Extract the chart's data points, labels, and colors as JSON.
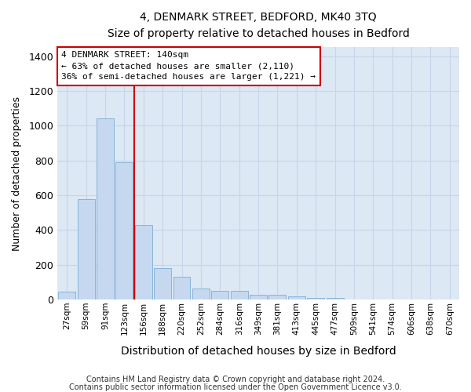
{
  "title": "4, DENMARK STREET, BEDFORD, MK40 3TQ",
  "subtitle": "Size of property relative to detached houses in Bedford",
  "xlabel": "Distribution of detached houses by size in Bedford",
  "ylabel": "Number of detached properties",
  "categories": [
    "27sqm",
    "59sqm",
    "91sqm",
    "123sqm",
    "156sqm",
    "188sqm",
    "220sqm",
    "252sqm",
    "284sqm",
    "316sqm",
    "349sqm",
    "381sqm",
    "413sqm",
    "445sqm",
    "477sqm",
    "509sqm",
    "541sqm",
    "574sqm",
    "606sqm",
    "638sqm",
    "670sqm"
  ],
  "values": [
    45,
    580,
    1040,
    790,
    430,
    180,
    130,
    65,
    50,
    50,
    30,
    28,
    20,
    12,
    12,
    0,
    0,
    0,
    0,
    0,
    0
  ],
  "bar_color": "#c5d8f0",
  "bar_edge_color": "#7bafd4",
  "marker_label_lines": [
    "4 DENMARK STREET: 140sqm",
    "← 63% of detached houses are smaller (2,110)",
    "36% of semi-detached houses are larger (1,221) →"
  ],
  "annotation_box_color": "#ffffff",
  "annotation_box_edge_color": "#cc0000",
  "vline_color": "#cc0000",
  "grid_color": "#c8d4e8",
  "bg_color": "#dde8f5",
  "ylim": [
    0,
    1450
  ],
  "footer1": "Contains HM Land Registry data © Crown copyright and database right 2024.",
  "footer2": "Contains public sector information licensed under the Open Government Licence v3.0."
}
